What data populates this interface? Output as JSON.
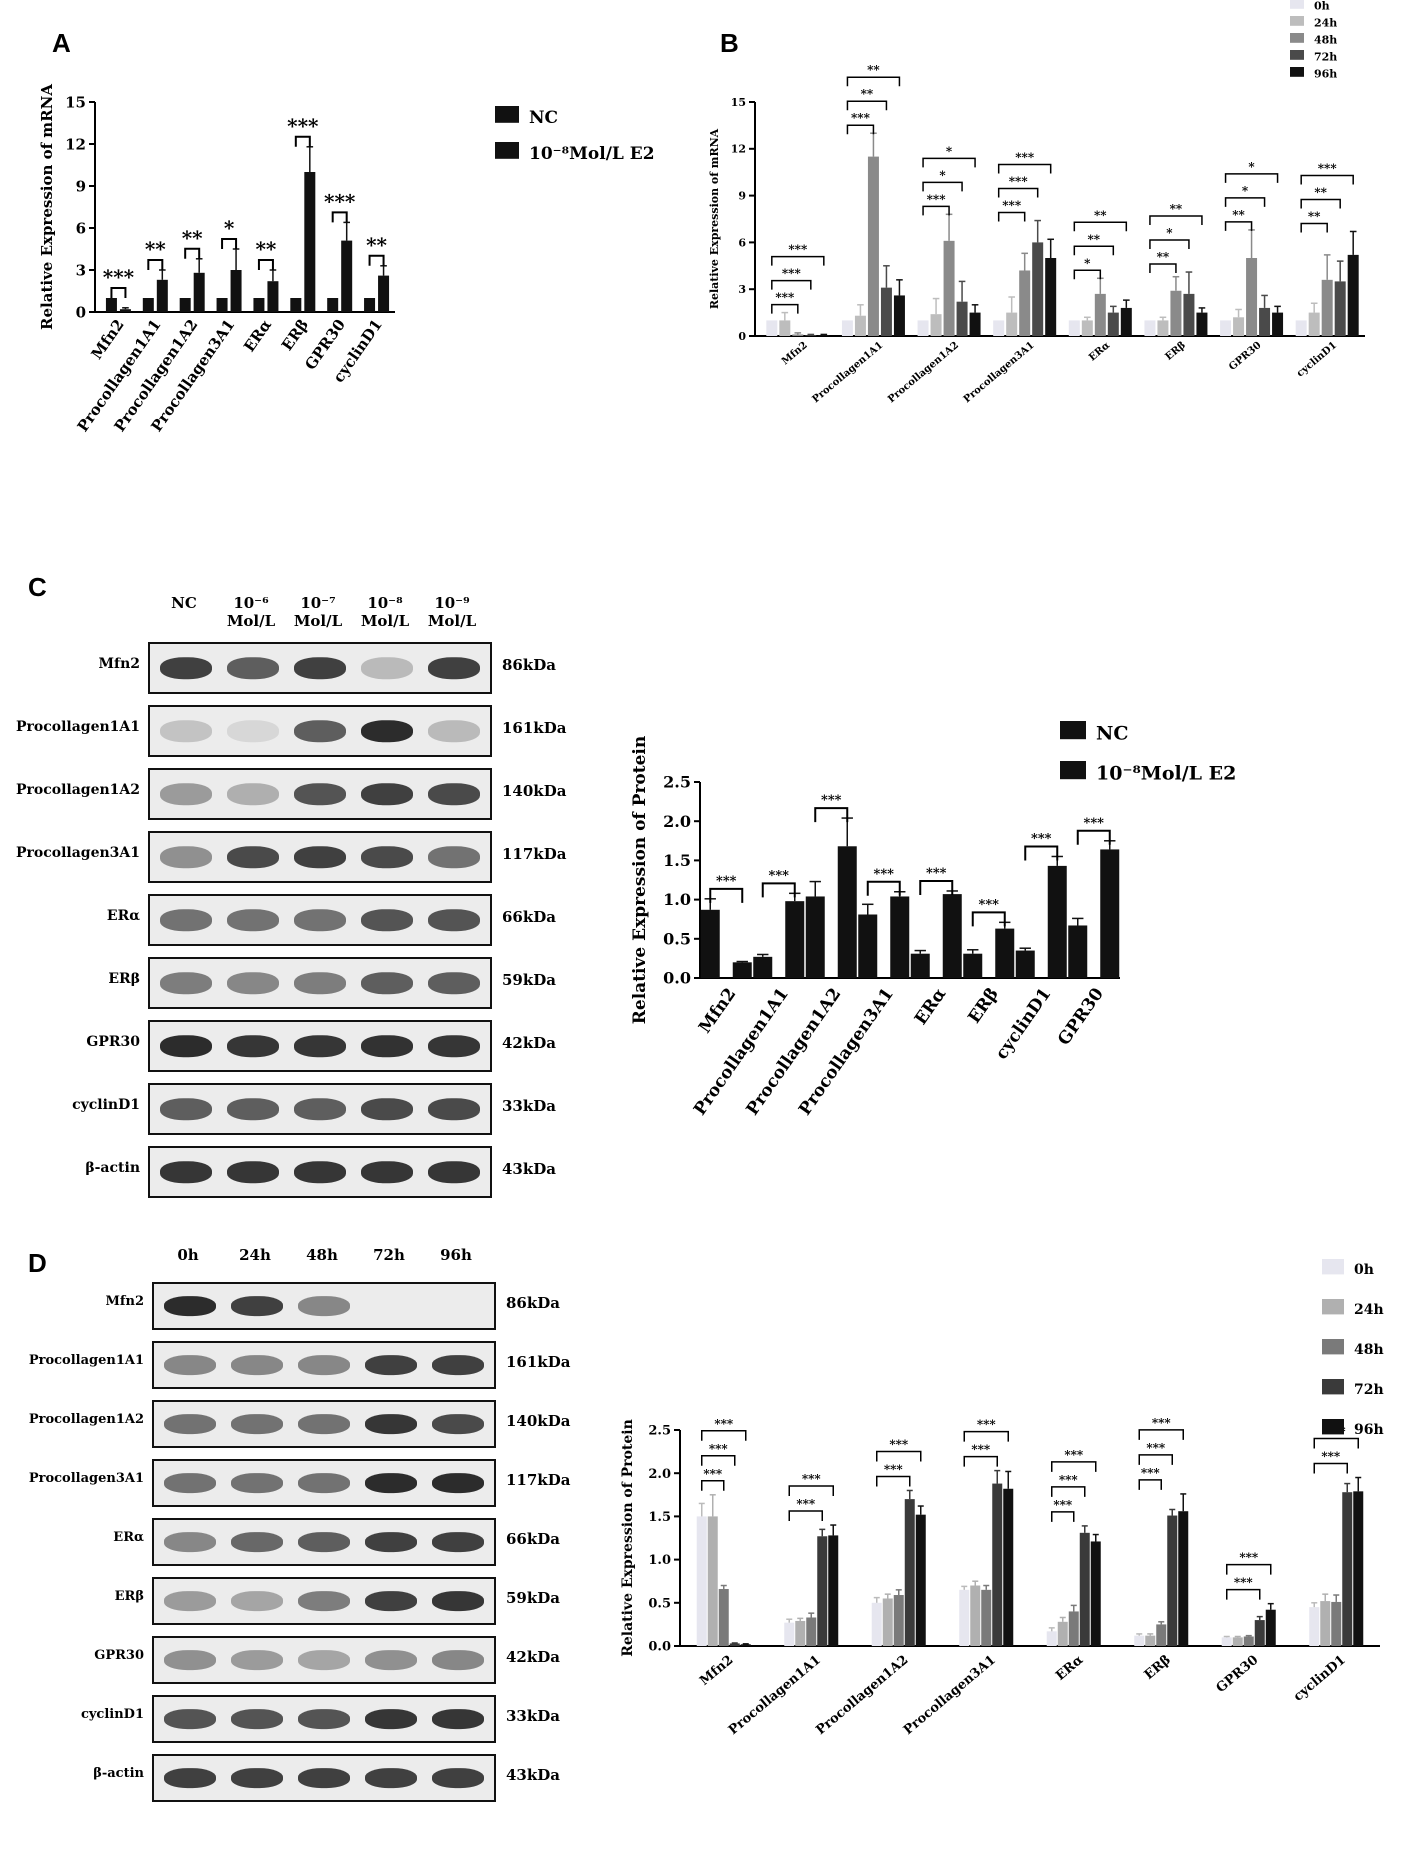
{
  "panels": {
    "a": "A",
    "b": "B",
    "c": "C",
    "d": "D"
  },
  "chart_data": [
    {
      "id": "A",
      "type": "bar",
      "ylabel": "Relative Expression of mRNA",
      "ylim": [
        0,
        15
      ],
      "yticks": [
        0,
        3,
        6,
        9,
        12,
        15
      ],
      "categories": [
        "Mfn2",
        "Procollagen1A1",
        "Procollagen1A2",
        "Procollagen3A1",
        "ERα",
        "ERβ",
        "GPR30",
        "cyclinD1"
      ],
      "series": [
        {
          "name": "NC",
          "values": [
            1,
            1,
            1,
            1,
            1,
            1,
            1,
            1
          ],
          "errors": [
            0,
            0,
            0,
            0,
            0,
            0,
            0,
            0
          ],
          "color": "#111111"
        },
        {
          "name": "10⁻⁸Mol/L E2",
          "values": [
            0.2,
            2.3,
            2.8,
            3.0,
            2.2,
            10.0,
            5.1,
            2.6
          ],
          "errors": [
            0.1,
            0.7,
            1.0,
            1.5,
            0.8,
            1.8,
            1.3,
            0.7
          ],
          "color": "#111111"
        }
      ],
      "significance": [
        "***",
        "**",
        "**",
        "*",
        "**",
        "***",
        "***",
        "**"
      ],
      "legend": [
        "NC",
        "10⁻⁸Mol/L E2"
      ],
      "legend_position": "top-right"
    },
    {
      "id": "B",
      "type": "bar",
      "ylabel": "Relative Expression of mRNA",
      "ylim": [
        0,
        15
      ],
      "yticks": [
        0,
        3,
        6,
        9,
        12,
        15
      ],
      "categories": [
        "Mfn2",
        "Procollagen1A1",
        "Procollagen1A2",
        "Procollagen3A1",
        "ERα",
        "ERβ",
        "GPR30",
        "cyclinD1"
      ],
      "series": [
        {
          "name": "0h",
          "values": [
            1,
            1,
            1,
            1,
            1,
            1,
            1,
            1
          ],
          "errors": [
            0,
            0,
            0,
            0,
            0,
            0,
            0,
            0
          ],
          "color": "#e6e6ef"
        },
        {
          "name": "24h",
          "values": [
            1.0,
            1.3,
            1.4,
            1.5,
            1.0,
            1.0,
            1.2,
            1.5
          ],
          "errors": [
            0.5,
            0.7,
            1.0,
            1.0,
            0.2,
            0.2,
            0.5,
            0.6
          ],
          "color": "#bdbdbd"
        },
        {
          "name": "48h",
          "values": [
            0.1,
            11.5,
            6.1,
            4.2,
            2.7,
            2.9,
            5.0,
            3.6
          ],
          "errors": [
            0.1,
            1.5,
            1.7,
            1.1,
            1.0,
            0.9,
            1.8,
            1.6
          ],
          "color": "#8a8a8a"
        },
        {
          "name": "72h",
          "values": [
            0.05,
            3.1,
            2.2,
            6.0,
            1.5,
            2.7,
            1.8,
            3.5
          ],
          "errors": [
            0.05,
            1.4,
            1.3,
            1.4,
            0.4,
            1.4,
            0.8,
            1.3
          ],
          "color": "#4a4a4a"
        },
        {
          "name": "96h",
          "values": [
            0.05,
            2.6,
            1.5,
            5.0,
            1.8,
            1.5,
            1.5,
            5.2
          ],
          "errors": [
            0.05,
            1.0,
            0.5,
            1.2,
            0.5,
            0.3,
            0.4,
            1.5
          ],
          "color": "#111111"
        }
      ],
      "significance_brackets": [
        {
          "category": 0,
          "labels": [
            "***",
            "***",
            "***"
          ]
        },
        {
          "category": 1,
          "labels": [
            "***",
            "**",
            "**"
          ]
        },
        {
          "category": 2,
          "labels": [
            "***",
            "*",
            "*"
          ]
        },
        {
          "category": 3,
          "labels": [
            "***",
            "***",
            "***"
          ]
        },
        {
          "category": 4,
          "labels": [
            "*",
            "**",
            "**"
          ]
        },
        {
          "category": 5,
          "labels": [
            "**",
            "*",
            "**"
          ]
        },
        {
          "category": 6,
          "labels": [
            "**",
            "*",
            "*"
          ]
        },
        {
          "category": 7,
          "labels": [
            "**",
            "**",
            "***"
          ]
        }
      ],
      "legend": [
        "0h",
        "24h",
        "48h",
        "72h",
        "96h"
      ],
      "legend_position": "top-right"
    },
    {
      "id": "C",
      "type": "bar",
      "ylabel": "Relative Expression of  Protein",
      "ylim": [
        0,
        2.5
      ],
      "yticks": [
        0.0,
        0.5,
        1.0,
        1.5,
        2.0,
        2.5
      ],
      "categories": [
        "Mfn2",
        "Procollagen1A1",
        "Procollagen1A2",
        "Procollagen3A1",
        "ERα",
        "ERβ",
        "cyclinD1",
        "GPR30"
      ],
      "series": [
        {
          "name": "NC",
          "values": [
            0.87,
            0.27,
            1.04,
            0.81,
            0.31,
            0.31,
            0.35,
            0.67
          ],
          "errors": [
            0.14,
            0.03,
            0.19,
            0.13,
            0.04,
            0.05,
            0.03,
            0.09
          ],
          "color": "#111111"
        },
        {
          "name": "10⁻⁸Mol/L E2",
          "values": [
            0.2,
            0.98,
            1.68,
            1.04,
            1.07,
            0.63,
            1.43,
            1.64
          ],
          "errors": [
            0.01,
            0.1,
            0.36,
            0.06,
            0.04,
            0.08,
            0.12,
            0.11
          ],
          "color": "#111111"
        }
      ],
      "significance": [
        "***",
        "***",
        "***",
        "***",
        "***",
        "***",
        "***",
        "***"
      ],
      "legend": [
        "NC",
        "10⁻⁸Mol/L E2"
      ],
      "legend_position": "top-right"
    },
    {
      "id": "D",
      "type": "bar",
      "ylabel": "Relative Expression of  Protein",
      "ylim": [
        0,
        2.5
      ],
      "yticks": [
        0.0,
        0.5,
        1.0,
        1.5,
        2.0,
        2.5
      ],
      "categories": [
        "Mfn2",
        "Procollagen1A1",
        "Procollagen1A2",
        "Procollagen3A1",
        "ERα",
        "ERβ",
        "GPR30",
        "cyclinD1"
      ],
      "series": [
        {
          "name": "0h",
          "values": [
            1.5,
            0.27,
            0.5,
            0.65,
            0.17,
            0.12,
            0.1,
            0.45
          ],
          "errors": [
            0.15,
            0.04,
            0.06,
            0.04,
            0.04,
            0.02,
            0.01,
            0.05
          ],
          "color": "#e6e6ef"
        },
        {
          "name": "24h",
          "values": [
            1.5,
            0.29,
            0.55,
            0.7,
            0.28,
            0.12,
            0.1,
            0.52
          ],
          "errors": [
            0.25,
            0.03,
            0.05,
            0.05,
            0.05,
            0.02,
            0.01,
            0.08
          ],
          "color": "#b0b0b0"
        },
        {
          "name": "48h",
          "values": [
            0.66,
            0.33,
            0.59,
            0.65,
            0.4,
            0.25,
            0.11,
            0.51
          ],
          "errors": [
            0.04,
            0.05,
            0.06,
            0.05,
            0.07,
            0.03,
            0.01,
            0.08
          ],
          "color": "#7a7a7a"
        },
        {
          "name": "72h",
          "values": [
            0.03,
            1.27,
            1.7,
            1.88,
            1.31,
            1.51,
            0.3,
            1.78
          ],
          "errors": [
            0.005,
            0.08,
            0.1,
            0.15,
            0.08,
            0.07,
            0.04,
            0.1
          ],
          "color": "#3a3a3a"
        },
        {
          "name": "96h",
          "values": [
            0.02,
            1.28,
            1.52,
            1.82,
            1.21,
            1.56,
            0.42,
            1.79
          ],
          "errors": [
            0.005,
            0.12,
            0.1,
            0.2,
            0.08,
            0.2,
            0.07,
            0.16
          ],
          "color": "#111111"
        }
      ],
      "significance_brackets": [
        {
          "category": 0,
          "labels": [
            "***",
            "***",
            "***"
          ]
        },
        {
          "category": 1,
          "labels": [
            "***",
            "***"
          ]
        },
        {
          "category": 2,
          "labels": [
            "***",
            "***"
          ]
        },
        {
          "category": 3,
          "labels": [
            "***",
            "***"
          ]
        },
        {
          "category": 4,
          "labels": [
            "***",
            "***",
            "***"
          ]
        },
        {
          "category": 5,
          "labels": [
            "***",
            "***",
            "***"
          ]
        },
        {
          "category": 6,
          "labels": [
            "***",
            "***"
          ]
        },
        {
          "category": 7,
          "labels": [
            "***",
            "***"
          ]
        }
      ],
      "legend": [
        "0h",
        "24h",
        "48h",
        "72h",
        "96h"
      ],
      "legend_position": "top-right"
    }
  ],
  "blot_c": {
    "columns": [
      {
        "top": "NC",
        "bottom": ""
      },
      {
        "top": "10⁻⁶",
        "bottom": "Mol/L"
      },
      {
        "top": "10⁻⁷",
        "bottom": "Mol/L"
      },
      {
        "top": "10⁻⁸",
        "bottom": "Mol/L"
      },
      {
        "top": "10⁻⁹",
        "bottom": "Mol/L"
      }
    ],
    "rows": [
      {
        "label": "Mfn2",
        "kda": "86kDa",
        "intensity": [
          0.85,
          0.7,
          0.85,
          0.25,
          0.85
        ]
      },
      {
        "label": "Procollagen1A1",
        "kda": "161kDa",
        "intensity": [
          0.2,
          0.1,
          0.7,
          0.95,
          0.25
        ]
      },
      {
        "label": "Procollagen1A2",
        "kda": "140kDa",
        "intensity": [
          0.4,
          0.3,
          0.75,
          0.85,
          0.8
        ]
      },
      {
        "label": "Procollagen3A1",
        "kda": "117kDa",
        "intensity": [
          0.45,
          0.8,
          0.85,
          0.8,
          0.6
        ]
      },
      {
        "label": "ERα",
        "kda": "66kDa",
        "intensity": [
          0.6,
          0.6,
          0.6,
          0.75,
          0.75
        ]
      },
      {
        "label": "ERβ",
        "kda": "59kDa",
        "intensity": [
          0.55,
          0.5,
          0.55,
          0.7,
          0.7
        ]
      },
      {
        "label": "GPR30",
        "kda": "42kDa",
        "intensity": [
          0.95,
          0.9,
          0.9,
          0.92,
          0.9
        ]
      },
      {
        "label": "cyclinD1",
        "kda": "33kDa",
        "intensity": [
          0.7,
          0.7,
          0.7,
          0.8,
          0.8
        ]
      },
      {
        "label": "β-actin",
        "kda": "43kDa",
        "intensity": [
          0.9,
          0.9,
          0.9,
          0.9,
          0.9
        ]
      }
    ]
  },
  "blot_d": {
    "columns": [
      {
        "top": "0h",
        "bottom": ""
      },
      {
        "top": "24h",
        "bottom": ""
      },
      {
        "top": "48h",
        "bottom": ""
      },
      {
        "top": "72h",
        "bottom": ""
      },
      {
        "top": "96h",
        "bottom": ""
      }
    ],
    "rows": [
      {
        "label": "Mfn2",
        "kda": "86kDa",
        "intensity": [
          0.95,
          0.85,
          0.5,
          0.0,
          0.0
        ]
      },
      {
        "label": "Procollagen1A1",
        "kda": "161kDa",
        "intensity": [
          0.5,
          0.5,
          0.5,
          0.85,
          0.85
        ]
      },
      {
        "label": "Procollagen1A2",
        "kda": "140kDa",
        "intensity": [
          0.6,
          0.6,
          0.6,
          0.9,
          0.8
        ]
      },
      {
        "label": "Procollagen3A1",
        "kda": "117kDa",
        "intensity": [
          0.6,
          0.6,
          0.6,
          0.95,
          0.95
        ]
      },
      {
        "label": "ERα",
        "kda": "66kDa",
        "intensity": [
          0.5,
          0.65,
          0.7,
          0.85,
          0.85
        ]
      },
      {
        "label": "ERβ",
        "kda": "59kDa",
        "intensity": [
          0.4,
          0.35,
          0.55,
          0.85,
          0.9
        ]
      },
      {
        "label": "GPR30",
        "kda": "42kDa",
        "intensity": [
          0.45,
          0.4,
          0.35,
          0.45,
          0.5
        ]
      },
      {
        "label": "cyclinD1",
        "kda": "33kDa",
        "intensity": [
          0.75,
          0.75,
          0.75,
          0.9,
          0.9
        ]
      },
      {
        "label": "β-actin",
        "kda": "43kDa",
        "intensity": [
          0.85,
          0.85,
          0.85,
          0.85,
          0.85
        ]
      }
    ]
  }
}
